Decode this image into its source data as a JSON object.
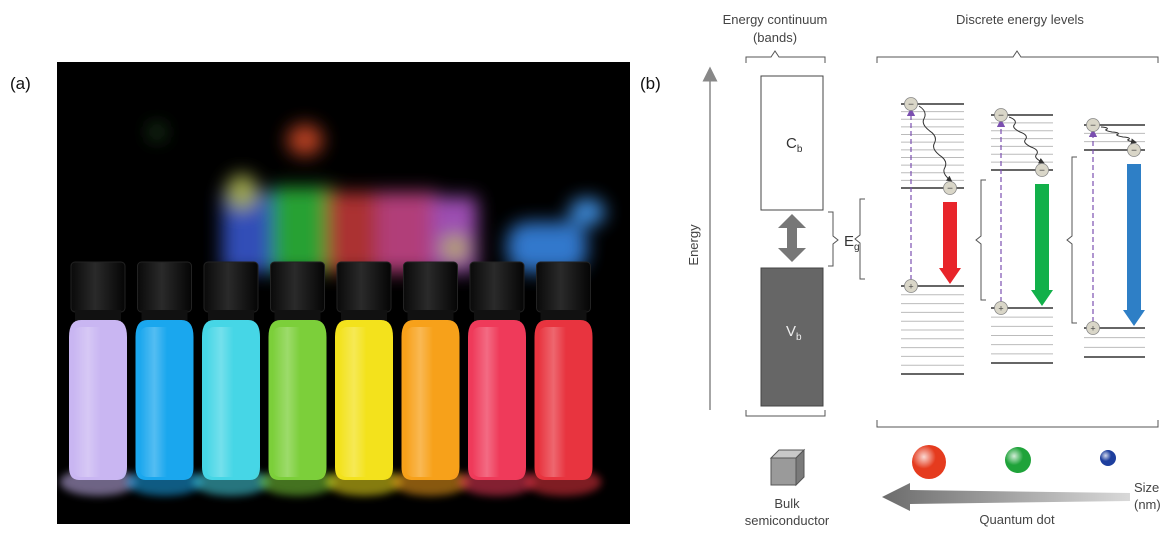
{
  "panels": {
    "a_label": "(a)",
    "b_label": "(b)"
  },
  "photo": {
    "vial_colors": [
      "#c9b6f2",
      "#1aa7ee",
      "#46d6e6",
      "#7ccf3a",
      "#f3e21c",
      "#f7a11a",
      "#ef3a5a",
      "#e8343f"
    ]
  },
  "diagram": {
    "continuum_title_line1": "Energy continuum",
    "continuum_title_line2": "(bands)",
    "discrete_title": "Discrete energy levels",
    "energy_axis_label": "Energy",
    "conduction_band_main": "C",
    "conduction_band_sub": "b",
    "valence_band_main": "V",
    "valence_band_sub": "b",
    "gap_label_main": "E",
    "gap_label_sub": "g",
    "bulk_label_line1": "Bulk",
    "bulk_label_line2": "semiconductor",
    "quantum_dot_label": "Quantum dot",
    "size_label_line1": "Size",
    "size_label_line2": "(nm)",
    "electron_symbol": "−",
    "hole_symbol": "+",
    "emission_colors": [
      "#e8252b",
      "#12b04a",
      "#2e7fc6"
    ],
    "dot_colors": [
      "#e53b1e",
      "#1fa33a",
      "#1e3f9e"
    ],
    "excitation_color": "#7b4fb0"
  }
}
